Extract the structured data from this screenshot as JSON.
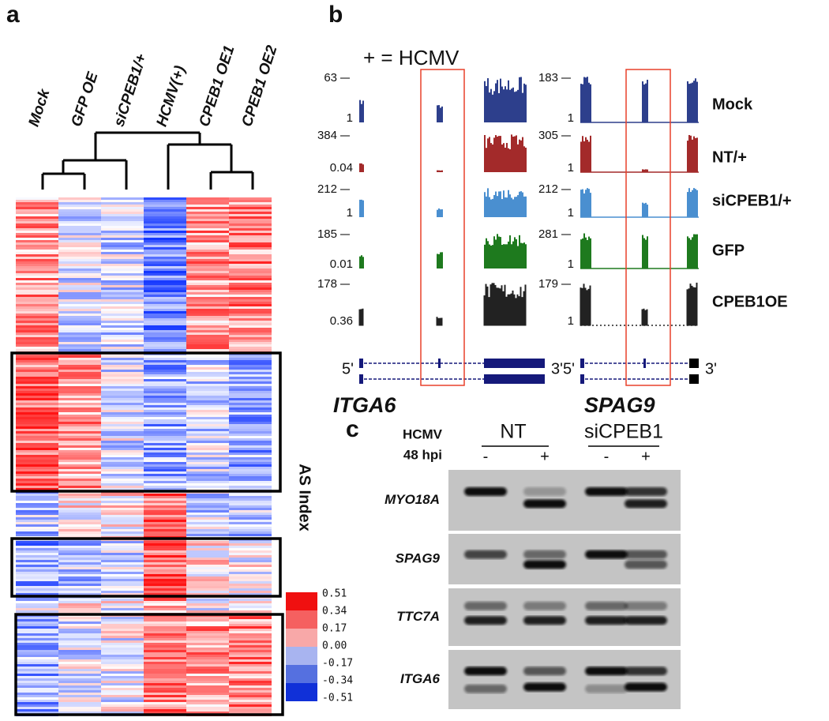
{
  "panel_a": {
    "label": "a",
    "columns": [
      "Mock",
      "GFP OE",
      "siCPEB1/+",
      "HCMV(+)",
      "CPEB1 OE1",
      "CPEB1 OE2"
    ],
    "colorbar_title": "AS Index",
    "colorbar_labels": [
      "0.51",
      "0.34",
      "0.17",
      "0.00",
      "-0.17",
      "-0.34",
      "-0.51"
    ]
  },
  "panel_b": {
    "label": "b",
    "legend_note": "+ = HCMV",
    "samples": [
      "Mock",
      "NT/+",
      "siCPEB1/+",
      "GFP",
      "CPEB1OE"
    ],
    "five_prime": "5'",
    "three_prime": "3'",
    "genes": [
      {
        "name": "ITGA6",
        "tracks": [
          {
            "max": "63",
            "min": "1"
          },
          {
            "max": "384",
            "min": "0.04"
          },
          {
            "max": "212",
            "min": "1"
          },
          {
            "max": "185",
            "min": "0.01"
          },
          {
            "max": "178",
            "min": "0.36"
          }
        ]
      },
      {
        "name": "SPAG9",
        "tracks": [
          {
            "max": "183",
            "min": "1"
          },
          {
            "max": "305",
            "min": "1"
          },
          {
            "max": "212",
            "min": "1"
          },
          {
            "max": "281",
            "min": "1"
          },
          {
            "max": "179",
            "min": "1"
          }
        ]
      }
    ]
  },
  "panel_c": {
    "label": "c",
    "row_labels": [
      "HCMV",
      "48 hpi"
    ],
    "groups": [
      "NT",
      "siCPEB1"
    ],
    "lanes": [
      "-",
      "+",
      "-",
      "+"
    ],
    "genes": [
      "MYO18A",
      "SPAG9",
      "TTC7A",
      "ITGA6"
    ]
  }
}
